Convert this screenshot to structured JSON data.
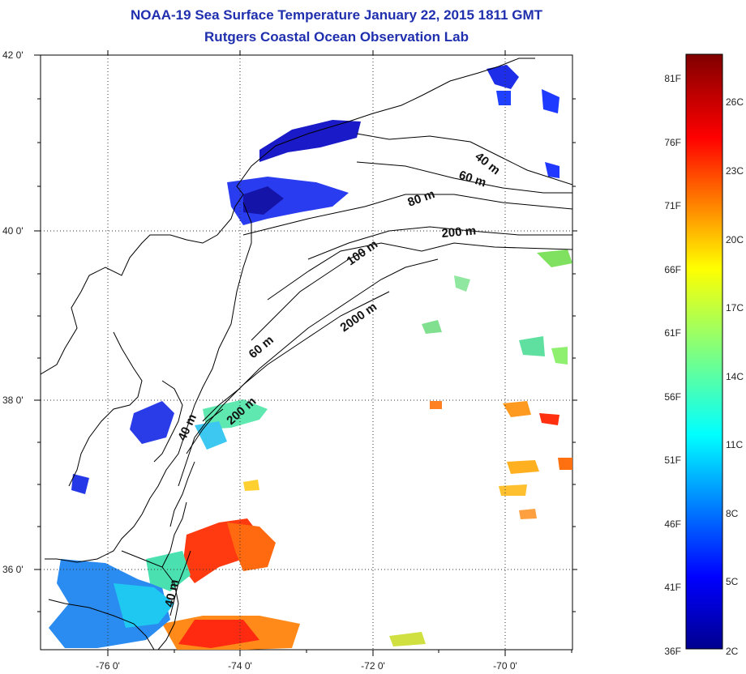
{
  "header": {
    "title_line1": "NOAA-19 Sea Surface Temperature January 22, 2015 1811 GMT",
    "title_line2": "Rutgers Coastal Ocean Observation Lab"
  },
  "axes": {
    "lat_ticks": [
      "42 0'",
      "40 0'",
      "38 0'",
      "36 0'"
    ],
    "lon_ticks": [
      "-76 0'",
      "-74 0'",
      "-72 0'",
      "-70 0'"
    ]
  },
  "contours": {
    "labels": [
      "40 m",
      "60 m",
      "80 m",
      "200 m",
      "100 m",
      "2000 m",
      "60 m",
      "200 m",
      "40 m",
      "40 m"
    ]
  },
  "colorbar": {
    "fahrenheit": [
      "81F",
      "76F",
      "71F",
      "66F",
      "61F",
      "56F",
      "51F",
      "46F",
      "41F",
      "36F"
    ],
    "celsius": [
      "26C",
      "23C",
      "20C",
      "17C",
      "14C",
      "11C",
      "8C",
      "5C",
      "2C"
    ]
  },
  "colors": {
    "title": "#1f2fae",
    "land_outline": "#000000",
    "grid": "#333333"
  }
}
